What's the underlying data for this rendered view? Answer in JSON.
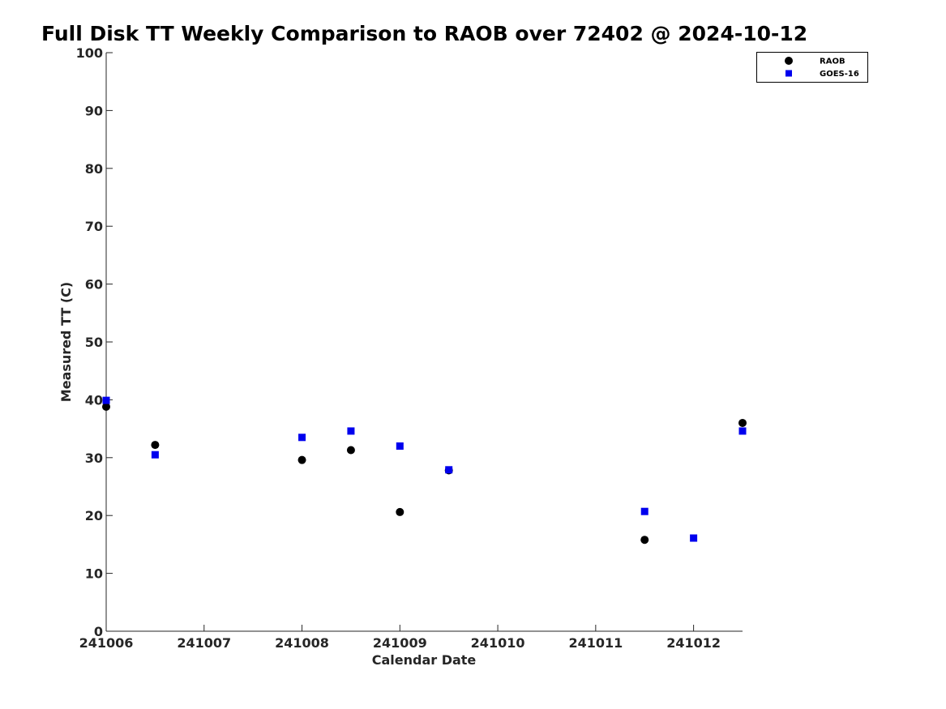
{
  "chart_data": {
    "type": "scatter",
    "title": "Full Disk TT Weekly Comparison to RAOB over 72402 @ 2024-10-12",
    "xlabel": "Calendar Date",
    "ylabel": "Measured TT (C)",
    "xlim": [
      "241006",
      "241012.5"
    ],
    "ylim": [
      0,
      100
    ],
    "x_ticks": [
      "241006",
      "241007",
      "241008",
      "241009",
      "241010",
      "241011",
      "241012"
    ],
    "y_ticks": [
      0,
      10,
      20,
      30,
      40,
      50,
      60,
      70,
      80,
      90,
      100
    ],
    "grid": false,
    "legend_position": "top-right",
    "series": [
      {
        "name": "RAOB",
        "marker": "circle",
        "color": "#000000",
        "points": [
          {
            "date": "241006",
            "y": 38.8
          },
          {
            "date": "241006.5",
            "y": 32.2
          },
          {
            "date": "241008",
            "y": 29.6
          },
          {
            "date": "241008.5",
            "y": 31.3
          },
          {
            "date": "241009",
            "y": 20.6
          },
          {
            "date": "241009.5",
            "y": 27.8
          },
          {
            "date": "241011.5",
            "y": 15.8
          },
          {
            "date": "241012.5",
            "y": 36.0
          }
        ]
      },
      {
        "name": "GOES-16",
        "marker": "square",
        "color": "#0000ee",
        "points": [
          {
            "date": "241006",
            "y": 39.9
          },
          {
            "date": "241006.5",
            "y": 30.5
          },
          {
            "date": "241008",
            "y": 33.5
          },
          {
            "date": "241008.5",
            "y": 34.6
          },
          {
            "date": "241009",
            "y": 32.0
          },
          {
            "date": "241009.5",
            "y": 27.9
          },
          {
            "date": "241011.5",
            "y": 20.7
          },
          {
            "date": "241012",
            "y": 16.1
          },
          {
            "date": "241012.5",
            "y": 34.6
          }
        ]
      }
    ]
  }
}
